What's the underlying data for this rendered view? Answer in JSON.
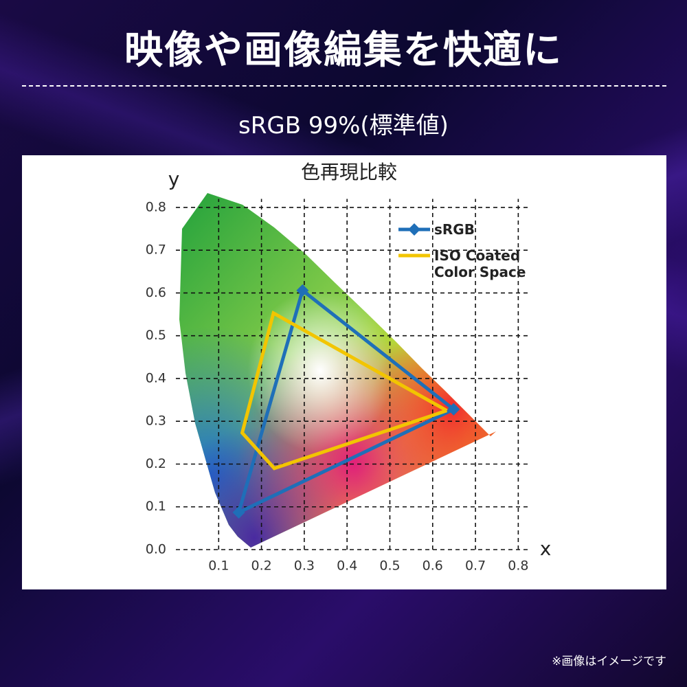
{
  "header": {
    "title": "映像や画像編集を快適に",
    "subtitle": "sRGB 99%(標準値)"
  },
  "chart_data": {
    "type": "line",
    "title": "色再現比較",
    "x_label": "x",
    "y_label": "y",
    "xlim": [
      0,
      0.84
    ],
    "ylim": [
      0,
      0.82
    ],
    "xticks": [
      0.1,
      0.2,
      0.3,
      0.4,
      0.5,
      0.6,
      0.7,
      0.8
    ],
    "yticks": [
      {
        "value": 0,
        "label": "0.0"
      },
      0.1,
      0.2,
      0.3,
      0.4,
      0.5,
      0.6,
      0.7,
      0.8
    ],
    "grid": true,
    "series": [
      {
        "name": "sRGB",
        "color": "#1f6fb8",
        "marker": "diamond",
        "x": [
          0.649,
          0.296,
          0.147,
          0.649
        ],
        "values": [
          0.328,
          0.606,
          0.087,
          0.328
        ]
      },
      {
        "name": "ISO Coated Color Space",
        "color": "#f2c500",
        "x": [
          0.633,
          0.228,
          0.155,
          0.23,
          0.633
        ],
        "values": [
          0.325,
          0.553,
          0.273,
          0.19,
          0.325
        ]
      }
    ]
  },
  "footnote": "※画像はイメージです"
}
